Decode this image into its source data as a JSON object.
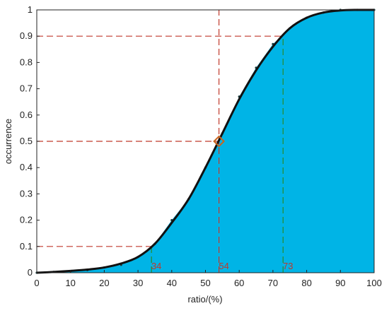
{
  "chart_data": {
    "type": "area",
    "xlabel": "ratio/(%)",
    "ylabel": "occurrence",
    "x": [
      0,
      5,
      10,
      15,
      20,
      25,
      30,
      35,
      40,
      45,
      50,
      55,
      60,
      65,
      70,
      75,
      80,
      85,
      90,
      95,
      100
    ],
    "series": [
      {
        "style": "area",
        "color": "#00b4e6",
        "values": [
          0,
          0.003,
          0.006,
          0.01,
          0.02,
          0.03,
          0.06,
          0.11,
          0.2,
          0.28,
          0.4,
          0.53,
          0.67,
          0.78,
          0.87,
          0.93,
          0.97,
          0.99,
          1,
          1,
          1
        ]
      },
      {
        "style": "line",
        "color": "#111111",
        "values": [
          0,
          0.003,
          0.007,
          0.012,
          0.02,
          0.035,
          0.06,
          0.11,
          0.19,
          0.28,
          0.4,
          0.53,
          0.66,
          0.77,
          0.86,
          0.93,
          0.97,
          0.99,
          0.998,
          1,
          1
        ]
      }
    ],
    "markers": [
      {
        "x": 34,
        "y": 0.1,
        "color": "#2a8a2a"
      },
      {
        "x": 54,
        "y": 0.5,
        "color": "#c0392b"
      },
      {
        "x": 73,
        "y": 0.9,
        "color": "#2a8a2a"
      }
    ],
    "diamond": {
      "x": 54,
      "y": 0.5,
      "color": "#c8641e"
    },
    "xlim": [
      0,
      100
    ],
    "ylim": [
      0,
      1
    ],
    "xticks": [
      0,
      10,
      20,
      30,
      40,
      50,
      60,
      70,
      80,
      90,
      100
    ],
    "yticks": [
      0,
      0.1,
      0.2,
      0.3,
      0.4,
      0.5,
      0.6,
      0.7,
      0.8,
      0.9,
      1
    ]
  }
}
